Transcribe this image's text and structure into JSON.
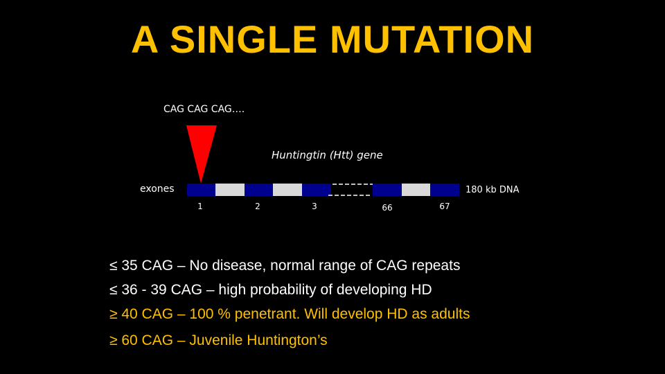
{
  "title": "A SINGLE MUTATION",
  "diagram": {
    "repeat_label": "CAG CAG CAG….",
    "gene_label": "Huntingtin (Htt) gene",
    "exons_label": "exones",
    "dna_label": "180 kb DNA",
    "exon_numbers": [
      "1",
      "2",
      "3",
      "66",
      "67"
    ],
    "colors": {
      "exon": "#00008f",
      "intron": "#d9d9d9",
      "marker": "#ff0000"
    }
  },
  "bullets": [
    {
      "text": "≤ 35 CAG – No disease, normal range of CAG repeats",
      "color": "#ffffff"
    },
    {
      "text": "≤ 36 - 39 CAG – high probability of developing HD",
      "color": "#ffffff"
    },
    {
      "text": "≥ 40 CAG – 100 % penetrant. Will develop HD as adults",
      "color": "#ffc000"
    },
    {
      "text": "≥ 60 CAG – Juvenile Huntington’s",
      "color": "#ffc000"
    }
  ]
}
